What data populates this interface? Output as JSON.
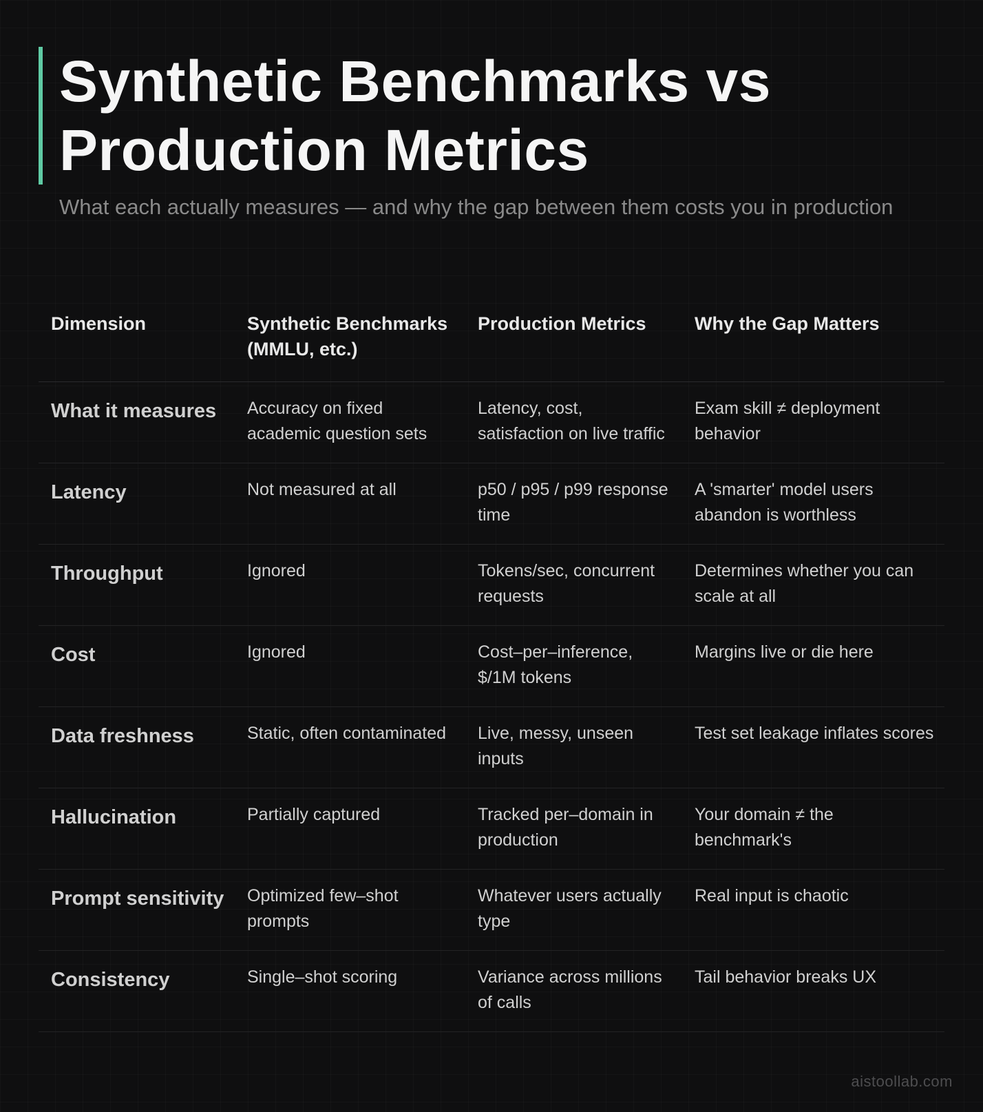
{
  "title_line1": "Synthetic Benchmarks vs",
  "title_line2": "Production Metrics",
  "subtitle": "What each actually measures — and why the gap between them costs you in production",
  "colors": {
    "accent_bar": "#5fcaa4",
    "blue": "#6aa8d8",
    "yellow": "#f3cf82",
    "purple": "#a7a3ea",
    "green": "#6ccfa3"
  },
  "table": {
    "headers": [
      "Dimension",
      "Synthetic Benchmarks (MMLU, etc.)",
      "Production Metrics",
      "Why the Gap Matters"
    ],
    "rows": [
      {
        "dimension": "What it measures",
        "color": "blue",
        "synthetic": "Accuracy on fixed academic question sets",
        "production": "Latency, cost, satisfaction on live traffic",
        "gap": "Exam skill ≠ deployment behavior"
      },
      {
        "dimension": "Latency",
        "color": "yellow",
        "synthetic": "Not measured at all",
        "production": "p50 / p95 / p99 response time",
        "gap": "A 'smarter' model users abandon is worthless"
      },
      {
        "dimension": "Throughput",
        "color": "yellow",
        "synthetic": "Ignored",
        "production": "Tokens/sec, concurrent requests",
        "gap": "Determines whether you can scale at all"
      },
      {
        "dimension": "Cost",
        "color": "yellow",
        "synthetic": "Ignored",
        "production": "Cost–per–inference, $/1M tokens",
        "gap": "Margins live or die here"
      },
      {
        "dimension": "Data freshness",
        "color": "purple",
        "synthetic": "Static, often contaminated",
        "production": "Live, messy, unseen inputs",
        "gap": "Test set leakage inflates scores"
      },
      {
        "dimension": "Hallucination",
        "color": "purple",
        "synthetic": "Partially captured",
        "production": "Tracked per–domain in production",
        "gap": "Your domain ≠ the benchmark's"
      },
      {
        "dimension": "Prompt sensitivity",
        "color": "blue",
        "synthetic": "Optimized few–shot prompts",
        "production": "Whatever users actually type",
        "gap": "Real input is chaotic"
      },
      {
        "dimension": "Consistency",
        "color": "green",
        "synthetic": "Single–shot scoring",
        "production": "Variance across millions of calls",
        "gap": "Tail behavior breaks UX"
      }
    ]
  },
  "footer": "aistoollab.com"
}
